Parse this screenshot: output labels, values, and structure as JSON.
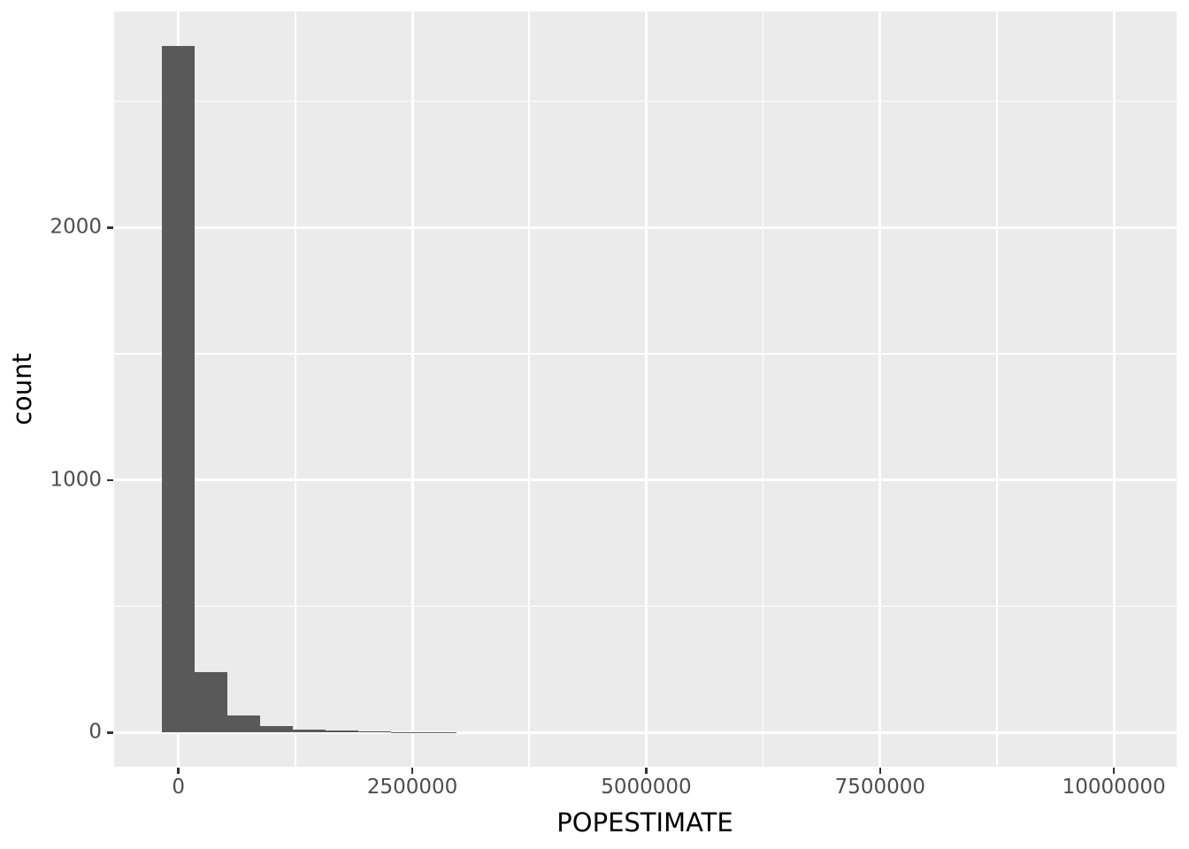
{
  "figure": {
    "background": "#FFFFFF"
  },
  "chart_data": {
    "type": "bar",
    "subtype": "histogram",
    "title": "",
    "xlabel": "POPESTIMATE",
    "ylabel": "count",
    "bin_width": 350000,
    "bins": {
      "centers": [
        0,
        350000,
        700000,
        1050000,
        1400000,
        1750000,
        2100000,
        2450000,
        2800000
      ],
      "counts": [
        2720,
        240,
        68,
        25,
        11,
        7,
        4,
        3,
        3
      ]
    },
    "x_axis": {
      "ticks": [
        0,
        2500000,
        5000000,
        7500000,
        10000000
      ],
      "tick_labels": [
        "0",
        "2500000",
        "5000000",
        "7500000",
        "10000000"
      ],
      "minor_breaks": [
        1250000,
        3750000,
        6250000,
        8750000
      ],
      "range": [
        -687500,
        10670000
      ]
    },
    "y_axis": {
      "ticks": [
        0,
        1000,
        2000
      ],
      "tick_labels": [
        "0",
        "1000",
        "2000"
      ],
      "minor_breaks": [
        500,
        1500,
        2500
      ],
      "range": [
        -135,
        2856
      ]
    },
    "grid": true,
    "legend": "none",
    "style": {
      "panel_background": "#EBEBEB",
      "grid_major_color": "#FFFFFF",
      "grid_minor_color": "#FFFFFF",
      "bar_fill": "#595959",
      "tick_mark_color": "#333333",
      "tick_label_color": "#4D4D4D",
      "axis_title_color": "#000000",
      "figure_background": "#FFFFFF"
    }
  }
}
